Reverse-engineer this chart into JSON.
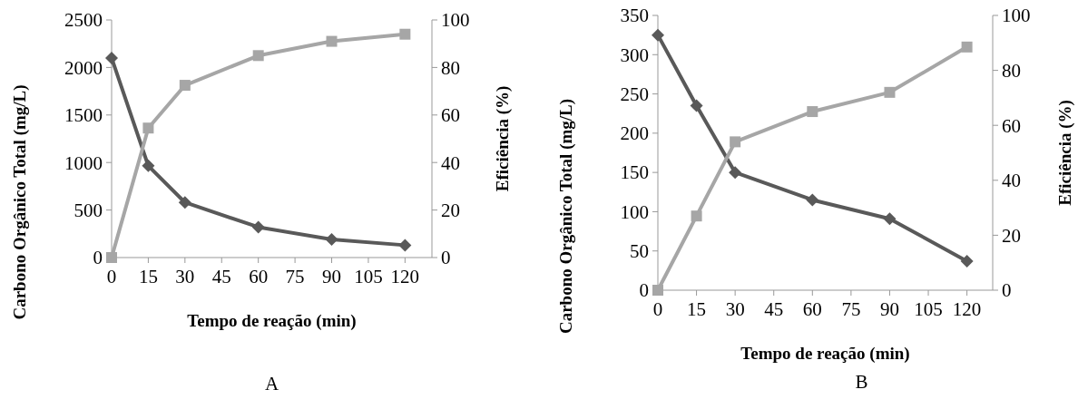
{
  "chart_data": [
    {
      "type": "line",
      "xlabel": "Tempo de reação (min)",
      "ylabel": "Carbono Orgânico Total (mg/L)",
      "y2label": "Eficiência (%)",
      "annotations": [
        "A"
      ],
      "x": [
        0,
        15,
        30,
        60,
        90,
        120
      ],
      "xlim": [
        0,
        131
      ],
      "xticks": [
        0,
        15,
        30,
        45,
        60,
        75,
        90,
        105,
        120
      ],
      "ylim": [
        0,
        2500
      ],
      "yticks": [
        0,
        500,
        1000,
        1500,
        2000,
        2500
      ],
      "y2lim": [
        0,
        100
      ],
      "y2ticks": [
        0,
        20,
        40,
        60,
        80,
        100
      ],
      "series": [
        {
          "color": "#595959",
          "marker": "diamond",
          "values": [
            2100,
            965,
            580,
            320,
            190,
            130
          ]
        },
        {
          "color": "#a6a6a6",
          "marker": "square",
          "axis": "y2",
          "values": [
            0,
            54.5,
            72.5,
            85,
            91,
            94
          ]
        }
      ]
    },
    {
      "type": "line",
      "xlabel": "Tempo de reação (min)",
      "ylabel": "Carbono Orgânico Total (mg/L)",
      "y2label": "Eficiência (%)",
      "annotations": [
        "B"
      ],
      "x": [
        0,
        15,
        30,
        60,
        90,
        120
      ],
      "xlim": [
        0,
        130
      ],
      "xticks": [
        0,
        15,
        30,
        45,
        60,
        75,
        90,
        105,
        120
      ],
      "ylim": [
        0,
        350
      ],
      "yticks": [
        0,
        50,
        100,
        150,
        200,
        250,
        300,
        350
      ],
      "y2lim": [
        0,
        100
      ],
      "y2ticks": [
        0,
        20,
        40,
        60,
        80,
        100
      ],
      "series": [
        {
          "color": "#595959",
          "marker": "diamond",
          "values": [
            325,
            235,
            150,
            115,
            91,
            37
          ]
        },
        {
          "color": "#a6a6a6",
          "marker": "square",
          "axis": "y2",
          "values": [
            0,
            27,
            54,
            65,
            72,
            88.5
          ]
        }
      ]
    }
  ]
}
